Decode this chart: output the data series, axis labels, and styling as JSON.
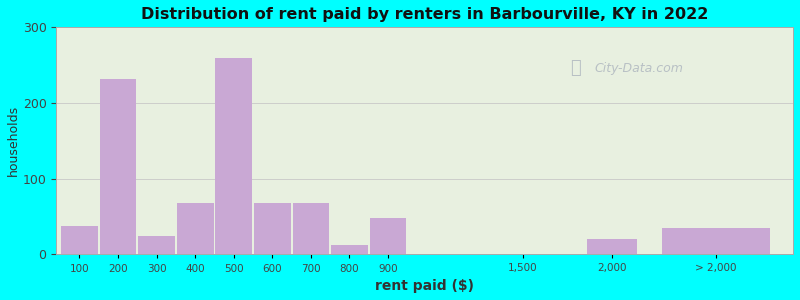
{
  "title": "Distribution of rent paid by renters in Barbourville, KY in 2022",
  "xlabel": "rent paid ($)",
  "ylabel": "households",
  "bar_color": "#c9a8d4",
  "background_color": "#00ffff",
  "plot_bg": "#e8f0e0",
  "categories": [
    "100",
    "200",
    "300",
    "400",
    "500",
    "600",
    "700",
    "800",
    "900",
    "1,500",
    "2,000",
    "> 2,000"
  ],
  "values": [
    38,
    232,
    25,
    68,
    260,
    68,
    68,
    12,
    48,
    0,
    20,
    35
  ],
  "ylim": [
    0,
    300
  ],
  "yticks": [
    0,
    100,
    200,
    300
  ],
  "watermark": "City-Data.com"
}
